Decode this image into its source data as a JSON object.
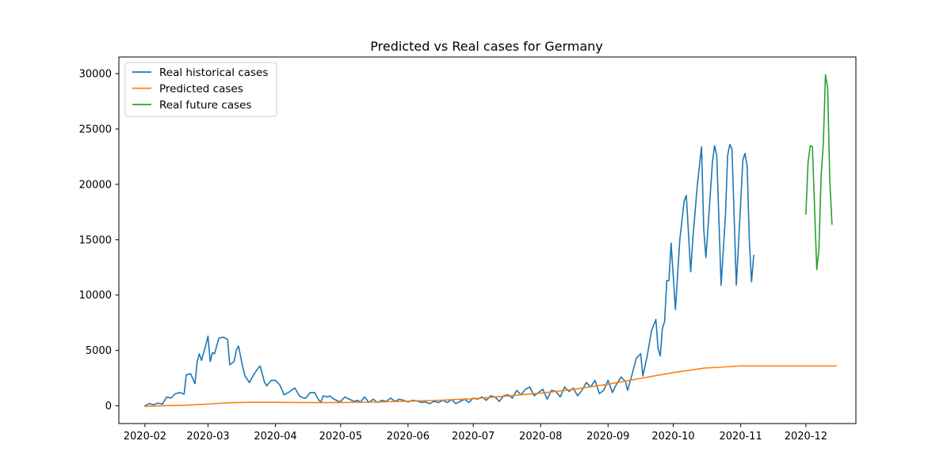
{
  "chart_data": {
    "type": "line",
    "title": "Predicted vs Real cases for Germany",
    "xlabel": "",
    "ylabel": "",
    "x_axis_type": "date",
    "xlim": [
      "2020-01-20",
      "2020-12-24"
    ],
    "ylim": [
      -1600,
      31500
    ],
    "x_ticks": [
      "2020-02-01",
      "2020-03-01",
      "2020-04-01",
      "2020-05-01",
      "2020-06-01",
      "2020-07-01",
      "2020-08-01",
      "2020-09-01",
      "2020-10-01",
      "2020-11-01",
      "2020-12-01"
    ],
    "x_tick_labels": [
      "2020-02",
      "2020-03",
      "2020-04",
      "2020-05",
      "2020-06",
      "2020-07",
      "2020-08",
      "2020-09",
      "2020-10",
      "2020-11",
      "2020-12"
    ],
    "y_ticks": [
      0,
      5000,
      10000,
      15000,
      20000,
      25000,
      30000
    ],
    "y_tick_labels": [
      "0",
      "5000",
      "10000",
      "15000",
      "20000",
      "25000",
      "30000"
    ],
    "grid": false,
    "legend_position": "top-left",
    "series": [
      {
        "name": "Real historical cases",
        "color": "#1f77b4",
        "points": [
          [
            "2020-02-01",
            0
          ],
          [
            "2020-02-03",
            200
          ],
          [
            "2020-02-05",
            100
          ],
          [
            "2020-02-07",
            250
          ],
          [
            "2020-02-09",
            150
          ],
          [
            "2020-02-11",
            800
          ],
          [
            "2020-02-13",
            700
          ],
          [
            "2020-02-15",
            1100
          ],
          [
            "2020-02-17",
            1200
          ],
          [
            "2020-02-19",
            1050
          ],
          [
            "2020-02-20",
            2800
          ],
          [
            "2020-02-22",
            2900
          ],
          [
            "2020-02-24",
            2000
          ],
          [
            "2020-02-25",
            4000
          ],
          [
            "2020-02-26",
            4700
          ],
          [
            "2020-02-27",
            4100
          ],
          [
            "2020-02-29",
            5500
          ],
          [
            "2020-03-01",
            6300
          ],
          [
            "2020-03-02",
            4000
          ],
          [
            "2020-03-03",
            4800
          ],
          [
            "2020-03-04",
            4700
          ],
          [
            "2020-03-06",
            6100
          ],
          [
            "2020-03-08",
            6200
          ],
          [
            "2020-03-10",
            6000
          ],
          [
            "2020-03-11",
            3700
          ],
          [
            "2020-03-13",
            4000
          ],
          [
            "2020-03-14",
            5000
          ],
          [
            "2020-03-15",
            5400
          ],
          [
            "2020-03-17",
            3500
          ],
          [
            "2020-03-18",
            2700
          ],
          [
            "2020-03-20",
            2100
          ],
          [
            "2020-03-22",
            2800
          ],
          [
            "2020-03-24",
            3400
          ],
          [
            "2020-03-25",
            3600
          ],
          [
            "2020-03-27",
            2100
          ],
          [
            "2020-03-28",
            1800
          ],
          [
            "2020-03-30",
            2300
          ],
          [
            "2020-04-01",
            2300
          ],
          [
            "2020-04-03",
            1900
          ],
          [
            "2020-04-05",
            1000
          ],
          [
            "2020-04-07",
            1200
          ],
          [
            "2020-04-09",
            1500
          ],
          [
            "2020-04-10",
            1600
          ],
          [
            "2020-04-12",
            900
          ],
          [
            "2020-04-14",
            700
          ],
          [
            "2020-04-15",
            700
          ],
          [
            "2020-04-17",
            1200
          ],
          [
            "2020-04-19",
            1200
          ],
          [
            "2020-04-21",
            500
          ],
          [
            "2020-04-22",
            350
          ],
          [
            "2020-04-23",
            900
          ],
          [
            "2020-04-25",
            800
          ],
          [
            "2020-04-26",
            900
          ],
          [
            "2020-04-28",
            600
          ],
          [
            "2020-04-30",
            400
          ],
          [
            "2020-05-01",
            400
          ],
          [
            "2020-05-03",
            800
          ],
          [
            "2020-05-05",
            600
          ],
          [
            "2020-05-07",
            400
          ],
          [
            "2020-05-09",
            500
          ],
          [
            "2020-05-10",
            300
          ],
          [
            "2020-05-12",
            800
          ],
          [
            "2020-05-14",
            300
          ],
          [
            "2020-05-16",
            600
          ],
          [
            "2020-05-18",
            300
          ],
          [
            "2020-05-20",
            500
          ],
          [
            "2020-05-22",
            400
          ],
          [
            "2020-05-24",
            700
          ],
          [
            "2020-05-26",
            400
          ],
          [
            "2020-05-28",
            600
          ],
          [
            "2020-05-30",
            500
          ],
          [
            "2020-06-01",
            350
          ],
          [
            "2020-06-03",
            500
          ],
          [
            "2020-06-05",
            450
          ],
          [
            "2020-06-07",
            300
          ],
          [
            "2020-06-09",
            350
          ],
          [
            "2020-06-11",
            200
          ],
          [
            "2020-06-13",
            400
          ],
          [
            "2020-06-15",
            300
          ],
          [
            "2020-06-17",
            500
          ],
          [
            "2020-06-19",
            300
          ],
          [
            "2020-06-21",
            550
          ],
          [
            "2020-06-23",
            200
          ],
          [
            "2020-06-25",
            400
          ],
          [
            "2020-06-27",
            600
          ],
          [
            "2020-06-29",
            300
          ],
          [
            "2020-07-01",
            700
          ],
          [
            "2020-07-03",
            600
          ],
          [
            "2020-07-05",
            800
          ],
          [
            "2020-07-07",
            500
          ],
          [
            "2020-07-09",
            900
          ],
          [
            "2020-07-11",
            800
          ],
          [
            "2020-07-13",
            400
          ],
          [
            "2020-07-15",
            900
          ],
          [
            "2020-07-17",
            1000
          ],
          [
            "2020-07-19",
            700
          ],
          [
            "2020-07-21",
            1400
          ],
          [
            "2020-07-23",
            1000
          ],
          [
            "2020-07-25",
            1500
          ],
          [
            "2020-07-27",
            1700
          ],
          [
            "2020-07-29",
            900
          ],
          [
            "2020-07-31",
            1200
          ],
          [
            "2020-08-02",
            1500
          ],
          [
            "2020-08-04",
            600
          ],
          [
            "2020-08-06",
            1400
          ],
          [
            "2020-08-08",
            1300
          ],
          [
            "2020-08-10",
            800
          ],
          [
            "2020-08-12",
            1700
          ],
          [
            "2020-08-14",
            1300
          ],
          [
            "2020-08-16",
            1600
          ],
          [
            "2020-08-18",
            900
          ],
          [
            "2020-08-20",
            1400
          ],
          [
            "2020-08-22",
            2100
          ],
          [
            "2020-08-24",
            1700
          ],
          [
            "2020-08-26",
            2300
          ],
          [
            "2020-08-28",
            1100
          ],
          [
            "2020-08-30",
            1400
          ],
          [
            "2020-09-01",
            2300
          ],
          [
            "2020-09-03",
            1200
          ],
          [
            "2020-09-05",
            2000
          ],
          [
            "2020-09-07",
            2600
          ],
          [
            "2020-09-09",
            2200
          ],
          [
            "2020-09-10",
            1400
          ],
          [
            "2020-09-12",
            2800
          ],
          [
            "2020-09-14",
            4300
          ],
          [
            "2020-09-16",
            4700
          ],
          [
            "2020-09-17",
            2700
          ],
          [
            "2020-09-19",
            4500
          ],
          [
            "2020-09-21",
            6800
          ],
          [
            "2020-09-23",
            7800
          ],
          [
            "2020-09-24",
            5200
          ],
          [
            "2020-09-25",
            4500
          ],
          [
            "2020-09-26",
            7000
          ],
          [
            "2020-09-27",
            7600
          ],
          [
            "2020-09-28",
            11300
          ],
          [
            "2020-09-29",
            11300
          ],
          [
            "2020-09-30",
            14700
          ],
          [
            "2020-10-02",
            8700
          ],
          [
            "2020-10-04",
            15000
          ],
          [
            "2020-10-06",
            18500
          ],
          [
            "2020-10-07",
            19000
          ],
          [
            "2020-10-09",
            12100
          ],
          [
            "2020-10-10",
            15100
          ],
          [
            "2020-10-12",
            19800
          ],
          [
            "2020-10-14",
            23400
          ],
          [
            "2020-10-15",
            16000
          ],
          [
            "2020-10-16",
            13400
          ],
          [
            "2020-10-18",
            19000
          ],
          [
            "2020-10-19",
            22000
          ],
          [
            "2020-10-20",
            23500
          ],
          [
            "2020-10-21",
            22600
          ],
          [
            "2020-10-23",
            10900
          ],
          [
            "2020-10-25",
            17200
          ],
          [
            "2020-10-26",
            22600
          ],
          [
            "2020-10-27",
            23600
          ],
          [
            "2020-10-28",
            23200
          ],
          [
            "2020-10-30",
            10900
          ],
          [
            "2020-11-01",
            18300
          ],
          [
            "2020-11-02",
            22200
          ],
          [
            "2020-11-03",
            22800
          ],
          [
            "2020-11-04",
            21600
          ],
          [
            "2020-11-05",
            14800
          ],
          [
            "2020-11-06",
            11200
          ],
          [
            "2020-11-07",
            13600
          ]
        ]
      },
      {
        "name": "Predicted cases",
        "color": "#ff7f0e",
        "points": [
          [
            "2020-02-01",
            -50
          ],
          [
            "2020-02-10",
            10
          ],
          [
            "2020-02-20",
            60
          ],
          [
            "2020-03-01",
            160
          ],
          [
            "2020-03-10",
            270
          ],
          [
            "2020-03-20",
            320
          ],
          [
            "2020-04-01",
            320
          ],
          [
            "2020-04-10",
            300
          ],
          [
            "2020-04-20",
            290
          ],
          [
            "2020-05-01",
            300
          ],
          [
            "2020-05-15",
            330
          ],
          [
            "2020-06-01",
            420
          ],
          [
            "2020-06-15",
            500
          ],
          [
            "2020-07-01",
            640
          ],
          [
            "2020-07-15",
            860
          ],
          [
            "2020-08-01",
            1150
          ],
          [
            "2020-08-15",
            1450
          ],
          [
            "2020-09-01",
            1950
          ],
          [
            "2020-09-15",
            2450
          ],
          [
            "2020-10-01",
            3000
          ],
          [
            "2020-10-15",
            3400
          ],
          [
            "2020-11-01",
            3600
          ],
          [
            "2020-11-15",
            3600
          ],
          [
            "2020-12-01",
            3600
          ],
          [
            "2020-12-15",
            3600
          ]
        ]
      },
      {
        "name": "Real future cases",
        "color": "#2ca02c",
        "points": [
          [
            "2020-12-01",
            17300
          ],
          [
            "2020-12-02",
            22000
          ],
          [
            "2020-12-03",
            23500
          ],
          [
            "2020-12-04",
            23400
          ],
          [
            "2020-12-05",
            17800
          ],
          [
            "2020-12-06",
            12300
          ],
          [
            "2020-12-07",
            14100
          ],
          [
            "2020-12-08",
            20800
          ],
          [
            "2020-12-09",
            23600
          ],
          [
            "2020-12-10",
            29900
          ],
          [
            "2020-12-11",
            28700
          ],
          [
            "2020-12-12",
            20300
          ],
          [
            "2020-12-13",
            16400
          ]
        ]
      }
    ]
  }
}
